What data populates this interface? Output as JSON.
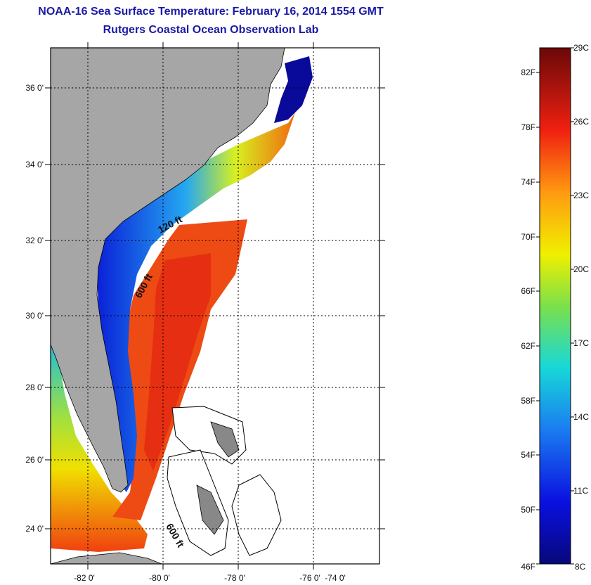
{
  "title": {
    "line1": "NOAA-16 Sea Surface Temperature:  February 16, 2014 1554 GMT",
    "line2": "Rutgers Coastal Ocean Observation Lab"
  },
  "map": {
    "lat_labels": [
      "36 0'",
      "34 0'",
      "32 0'",
      "30 0'",
      "28 0'",
      "26 0'",
      "24 0'"
    ],
    "lon_labels": [
      "-82 0'",
      "-80 0'",
      "-78 0'",
      "-76 0'",
      "-74 0'"
    ],
    "contour_labels": [
      "120 ft",
      "600 ft",
      "600 ft"
    ],
    "colors": {
      "land": "#a6a6a6",
      "grid": "#000000",
      "ocean_no_data": "#ffffff"
    }
  },
  "colorbar": {
    "celsius_labels": [
      "29C",
      "26C",
      "23C",
      "20C",
      "17C",
      "14C",
      "11C",
      "8C"
    ],
    "fahrenheit_labels": [
      "82F",
      "78F",
      "74F",
      "70F",
      "66F",
      "62F",
      "58F",
      "54F",
      "50F",
      "46F"
    ]
  }
}
